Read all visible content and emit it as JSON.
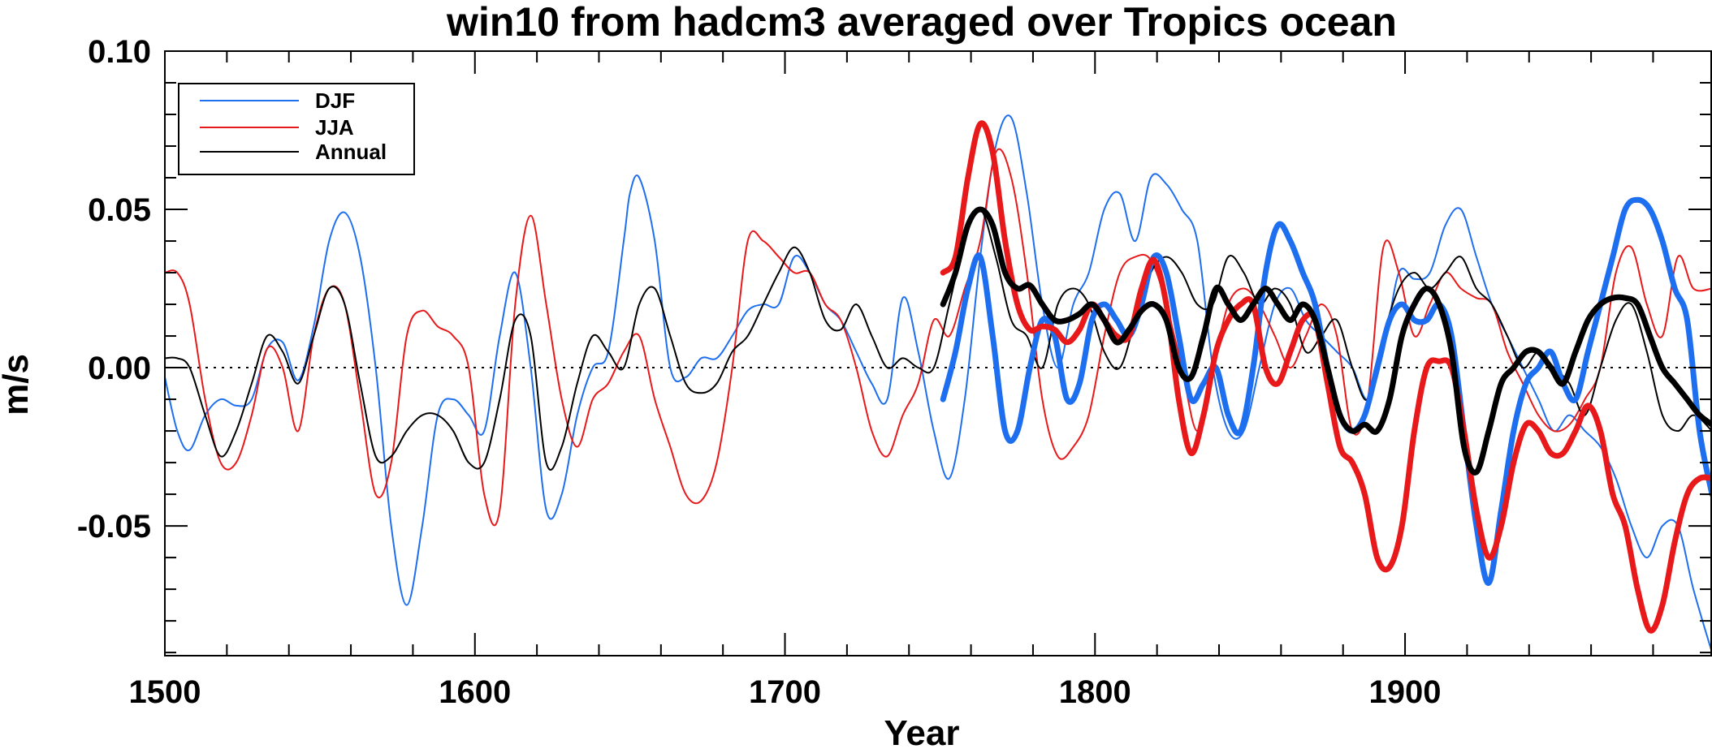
{
  "chart_data": {
    "type": "line",
    "title": "win10 from hadcm3 averaged over Tropics ocean",
    "xlabel": "Year",
    "ylabel": "m/s",
    "xlim": [
      1500,
      1999
    ],
    "ylim": [
      -0.091,
      0.1
    ],
    "xticks": [
      1500,
      1600,
      1700,
      1800,
      1900
    ],
    "xtick_labels": [
      "1500",
      "1600",
      "1700",
      "1800",
      "1900"
    ],
    "yticks": [
      0.1,
      0.05,
      0.0,
      -0.05
    ],
    "ytick_labels": [
      "0.10",
      "0.05",
      "0.00",
      "-0.05"
    ],
    "zero_line": {
      "y": 0.0,
      "style": "dotted"
    },
    "legend": {
      "position": "top-left",
      "entries": [
        {
          "label": "DJF",
          "color": "#1e6ff0"
        },
        {
          "label": "JJA",
          "color": "#e8191b"
        },
        {
          "label": "Annual",
          "color": "#000000"
        }
      ]
    },
    "series": [
      {
        "name": "DJF",
        "color": "#1e6ff0",
        "style": "thin",
        "x": [
          1500,
          1504,
          1508,
          1513,
          1518,
          1523,
          1528,
          1533,
          1538,
          1543,
          1548,
          1553,
          1558,
          1563,
          1568,
          1573,
          1578,
          1583,
          1588,
          1593,
          1598,
          1603,
          1608,
          1613,
          1618,
          1623,
          1628,
          1633,
          1638,
          1643,
          1648,
          1650,
          1653,
          1658,
          1663,
          1668,
          1673,
          1678,
          1683,
          1688,
          1693,
          1698,
          1703,
          1708,
          1713,
          1718,
          1723,
          1728,
          1733,
          1738,
          1743,
          1748,
          1753,
          1758,
          1763,
          1768,
          1773,
          1778,
          1783,
          1788,
          1793,
          1798,
          1803,
          1808,
          1813,
          1818,
          1823,
          1828,
          1833,
          1838,
          1843,
          1848,
          1853,
          1858,
          1863,
          1868,
          1873,
          1878,
          1883,
          1888,
          1893,
          1898,
          1903,
          1908,
          1913,
          1918,
          1923,
          1928,
          1933,
          1938,
          1943,
          1948,
          1953,
          1958,
          1963,
          1968,
          1973,
          1978,
          1983,
          1988,
          1993,
          1999
        ],
        "y": [
          -0.003,
          -0.02,
          -0.026,
          -0.015,
          -0.01,
          -0.012,
          -0.01,
          0.006,
          0.008,
          -0.004,
          0.013,
          0.04,
          0.049,
          0.035,
          0.0,
          -0.05,
          -0.075,
          -0.05,
          -0.015,
          -0.01,
          -0.015,
          -0.02,
          0.01,
          0.03,
          0.0,
          -0.045,
          -0.04,
          -0.015,
          0.0,
          0.005,
          0.04,
          0.055,
          0.06,
          0.04,
          0.0,
          -0.003,
          0.003,
          0.003,
          0.01,
          0.018,
          0.02,
          0.02,
          0.035,
          0.03,
          0.02,
          0.015,
          0.005,
          -0.005,
          -0.01,
          0.022,
          0.005,
          -0.02,
          -0.035,
          -0.01,
          0.035,
          0.07,
          0.079,
          0.055,
          0.02,
          0.0,
          0.02,
          0.03,
          0.05,
          0.055,
          0.04,
          0.06,
          0.058,
          0.05,
          0.04,
          0.0,
          -0.02,
          -0.02,
          0.0,
          0.02,
          0.025,
          0.015,
          0.01,
          0.005,
          0.0,
          -0.01,
          0.005,
          0.03,
          0.028,
          0.03,
          0.045,
          0.05,
          0.035,
          0.02,
          0.01,
          0.0,
          -0.01,
          -0.02,
          -0.015,
          -0.02,
          -0.025,
          -0.035,
          -0.05,
          -0.06,
          -0.05,
          -0.05,
          -0.07,
          -0.09
        ]
      },
      {
        "name": "JJA",
        "color": "#e8191b",
        "style": "thin",
        "x": [
          1500,
          1504,
          1508,
          1513,
          1518,
          1523,
          1528,
          1533,
          1538,
          1543,
          1548,
          1553,
          1558,
          1563,
          1568,
          1573,
          1578,
          1583,
          1588,
          1593,
          1598,
          1603,
          1608,
          1613,
          1618,
          1623,
          1628,
          1633,
          1638,
          1643,
          1648,
          1653,
          1658,
          1663,
          1668,
          1673,
          1678,
          1683,
          1688,
          1693,
          1698,
          1703,
          1708,
          1713,
          1718,
          1723,
          1728,
          1733,
          1738,
          1743,
          1748,
          1753,
          1758,
          1763,
          1768,
          1773,
          1778,
          1783,
          1788,
          1793,
          1798,
          1803,
          1808,
          1813,
          1818,
          1823,
          1828,
          1833,
          1838,
          1843,
          1848,
          1853,
          1858,
          1863,
          1868,
          1873,
          1878,
          1883,
          1888,
          1893,
          1898,
          1903,
          1908,
          1913,
          1918,
          1923,
          1928,
          1933,
          1938,
          1943,
          1948,
          1953,
          1958,
          1963,
          1968,
          1973,
          1978,
          1983,
          1988,
          1993,
          1999
        ],
        "y": [
          0.03,
          0.03,
          0.02,
          -0.01,
          -0.03,
          -0.03,
          -0.015,
          0.006,
          0.0,
          -0.02,
          0.01,
          0.025,
          0.02,
          -0.01,
          -0.04,
          -0.03,
          0.01,
          0.018,
          0.013,
          0.01,
          0.0,
          -0.04,
          -0.045,
          0.02,
          0.048,
          0.02,
          -0.01,
          -0.025,
          -0.01,
          -0.005,
          0.005,
          0.01,
          -0.01,
          -0.025,
          -0.04,
          -0.042,
          -0.03,
          0.0,
          0.04,
          0.04,
          0.035,
          0.03,
          0.03,
          0.02,
          0.015,
          0.0,
          -0.02,
          -0.028,
          -0.015,
          -0.005,
          0.015,
          0.01,
          0.025,
          0.04,
          0.068,
          0.06,
          0.03,
          -0.01,
          -0.028,
          -0.025,
          -0.015,
          0.01,
          0.03,
          0.035,
          0.034,
          0.02,
          0.0,
          -0.02,
          0.0,
          0.02,
          0.025,
          0.02,
          0.01,
          0.0,
          0.01,
          0.02,
          0.01,
          -0.02,
          -0.01,
          0.038,
          0.03,
          0.01,
          0.02,
          0.03,
          0.025,
          0.022,
          0.02,
          0.005,
          -0.005,
          -0.015,
          -0.02,
          -0.018,
          -0.01,
          0.0,
          0.03,
          0.038,
          0.02,
          0.01,
          0.035,
          0.025,
          0.025
        ]
      },
      {
        "name": "Annual",
        "color": "#000000",
        "style": "thin",
        "x": [
          1500,
          1504,
          1508,
          1513,
          1518,
          1523,
          1528,
          1533,
          1538,
          1543,
          1548,
          1553,
          1558,
          1563,
          1568,
          1573,
          1578,
          1583,
          1588,
          1593,
          1598,
          1603,
          1608,
          1613,
          1618,
          1623,
          1628,
          1633,
          1638,
          1643,
          1648,
          1653,
          1658,
          1663,
          1668,
          1673,
          1678,
          1683,
          1688,
          1693,
          1698,
          1703,
          1708,
          1713,
          1718,
          1723,
          1728,
          1733,
          1738,
          1743,
          1748,
          1753,
          1758,
          1763,
          1768,
          1773,
          1778,
          1783,
          1788,
          1793,
          1798,
          1803,
          1808,
          1813,
          1818,
          1823,
          1828,
          1833,
          1838,
          1843,
          1848,
          1853,
          1858,
          1863,
          1868,
          1873,
          1878,
          1883,
          1888,
          1893,
          1898,
          1903,
          1908,
          1913,
          1918,
          1923,
          1928,
          1933,
          1938,
          1943,
          1948,
          1953,
          1958,
          1963,
          1968,
          1973,
          1978,
          1983,
          1988,
          1993,
          1999
        ],
        "y": [
          0.003,
          0.003,
          0.0,
          -0.015,
          -0.028,
          -0.02,
          -0.005,
          0.01,
          0.005,
          -0.005,
          0.01,
          0.025,
          0.02,
          -0.005,
          -0.028,
          -0.028,
          -0.02,
          -0.015,
          -0.015,
          -0.02,
          -0.03,
          -0.03,
          -0.01,
          0.015,
          0.01,
          -0.03,
          -0.025,
          -0.005,
          0.01,
          0.005,
          0.0,
          0.02,
          0.025,
          0.01,
          -0.005,
          -0.008,
          -0.005,
          0.005,
          0.01,
          0.02,
          0.03,
          0.038,
          0.03,
          0.015,
          0.012,
          0.02,
          0.01,
          0.0,
          0.003,
          0.0,
          0.0,
          0.02,
          0.04,
          0.05,
          0.035,
          0.015,
          0.01,
          0.0,
          0.02,
          0.025,
          0.02,
          0.005,
          0.0,
          0.015,
          0.03,
          0.035,
          0.03,
          0.02,
          0.02,
          0.035,
          0.03,
          0.02,
          0.025,
          0.02,
          0.005,
          0.01,
          0.015,
          0.0,
          -0.01,
          0.01,
          0.025,
          0.03,
          0.025,
          0.03,
          0.035,
          0.025,
          0.02,
          0.01,
          0.0,
          0.005,
          0.0,
          -0.005,
          -0.015,
          0.0,
          0.015,
          0.02,
          0.005,
          -0.015,
          -0.02,
          -0.015,
          -0.02
        ]
      },
      {
        "name": "DJF (bold)",
        "color": "#1e6ff0",
        "style": "thick",
        "x": [
          1751,
          1755,
          1759,
          1763,
          1767,
          1771,
          1775,
          1779,
          1783,
          1787,
          1791,
          1795,
          1799,
          1803,
          1807,
          1811,
          1815,
          1819,
          1823,
          1827,
          1831,
          1835,
          1839,
          1843,
          1847,
          1851,
          1855,
          1859,
          1863,
          1867,
          1871,
          1875,
          1879,
          1883,
          1887,
          1891,
          1895,
          1899,
          1903,
          1907,
          1911,
          1915,
          1919,
          1923,
          1927,
          1931,
          1935,
          1939,
          1943,
          1947,
          1951,
          1955,
          1959,
          1963,
          1967,
          1971,
          1975,
          1979,
          1983,
          1987,
          1991,
          1995,
          1999
        ],
        "y": [
          -0.01,
          0.005,
          0.025,
          0.035,
          0.01,
          -0.02,
          -0.02,
          0.0,
          0.015,
          0.01,
          -0.01,
          -0.005,
          0.015,
          0.02,
          0.015,
          0.01,
          0.02,
          0.035,
          0.03,
          0.01,
          -0.01,
          -0.005,
          0.0,
          -0.015,
          -0.02,
          0.0,
          0.03,
          0.045,
          0.04,
          0.03,
          0.02,
          0.0,
          -0.015,
          -0.02,
          -0.015,
          0.0,
          0.015,
          0.02,
          0.015,
          0.015,
          0.02,
          0.01,
          -0.02,
          -0.05,
          -0.068,
          -0.045,
          -0.02,
          -0.005,
          0.0,
          0.005,
          -0.005,
          -0.01,
          0.005,
          0.02,
          0.035,
          0.05,
          0.053,
          0.05,
          0.04,
          0.025,
          0.015,
          -0.02,
          -0.04
        ]
      },
      {
        "name": "JJA (bold)",
        "color": "#e8191b",
        "style": "thick",
        "x": [
          1751,
          1755,
          1759,
          1763,
          1767,
          1771,
          1775,
          1779,
          1783,
          1787,
          1791,
          1795,
          1799,
          1803,
          1807,
          1811,
          1815,
          1819,
          1823,
          1827,
          1831,
          1835,
          1839,
          1843,
          1847,
          1851,
          1855,
          1859,
          1863,
          1867,
          1871,
          1875,
          1879,
          1883,
          1887,
          1891,
          1895,
          1899,
          1903,
          1907,
          1911,
          1915,
          1919,
          1923,
          1927,
          1931,
          1935,
          1939,
          1943,
          1947,
          1951,
          1955,
          1959,
          1963,
          1967,
          1971,
          1975,
          1979,
          1983,
          1987,
          1991,
          1995,
          1999
        ],
        "y": [
          0.03,
          0.035,
          0.06,
          0.077,
          0.068,
          0.04,
          0.02,
          0.012,
          0.013,
          0.012,
          0.008,
          0.012,
          0.02,
          0.015,
          0.01,
          0.01,
          0.025,
          0.034,
          0.02,
          -0.01,
          -0.027,
          -0.015,
          0.005,
          0.015,
          0.02,
          0.02,
          0.0,
          -0.005,
          0.005,
          0.015,
          0.015,
          -0.005,
          -0.025,
          -0.03,
          -0.04,
          -0.06,
          -0.063,
          -0.05,
          -0.02,
          0.0,
          0.002,
          0.0,
          -0.02,
          -0.045,
          -0.06,
          -0.05,
          -0.03,
          -0.018,
          -0.02,
          -0.027,
          -0.027,
          -0.02,
          -0.012,
          -0.02,
          -0.04,
          -0.05,
          -0.07,
          -0.083,
          -0.075,
          -0.055,
          -0.04,
          -0.035,
          -0.035
        ]
      },
      {
        "name": "Annual (bold)",
        "color": "#000000",
        "style": "thick",
        "x": [
          1751,
          1755,
          1759,
          1763,
          1767,
          1771,
          1775,
          1779,
          1783,
          1787,
          1791,
          1795,
          1799,
          1803,
          1807,
          1811,
          1815,
          1819,
          1823,
          1827,
          1831,
          1835,
          1839,
          1843,
          1847,
          1851,
          1855,
          1859,
          1863,
          1867,
          1871,
          1875,
          1879,
          1883,
          1887,
          1891,
          1895,
          1899,
          1903,
          1907,
          1911,
          1915,
          1919,
          1923,
          1927,
          1931,
          1935,
          1939,
          1943,
          1947,
          1951,
          1955,
          1959,
          1963,
          1967,
          1971,
          1975,
          1979,
          1983,
          1987,
          1991,
          1995,
          1999
        ],
        "y": [
          0.02,
          0.03,
          0.045,
          0.05,
          0.045,
          0.03,
          0.025,
          0.026,
          0.02,
          0.015,
          0.015,
          0.017,
          0.02,
          0.015,
          0.008,
          0.012,
          0.018,
          0.02,
          0.015,
          0.0,
          -0.003,
          0.01,
          0.025,
          0.02,
          0.015,
          0.02,
          0.025,
          0.02,
          0.015,
          0.02,
          0.015,
          0.0,
          -0.015,
          -0.02,
          -0.018,
          -0.02,
          -0.01,
          0.01,
          0.02,
          0.025,
          0.02,
          0.005,
          -0.025,
          -0.033,
          -0.02,
          -0.005,
          0.0,
          0.005,
          0.005,
          0.0,
          -0.005,
          0.005,
          0.015,
          0.02,
          0.022,
          0.022,
          0.02,
          0.01,
          0.0,
          -0.005,
          -0.01,
          -0.015,
          -0.018
        ]
      }
    ]
  }
}
